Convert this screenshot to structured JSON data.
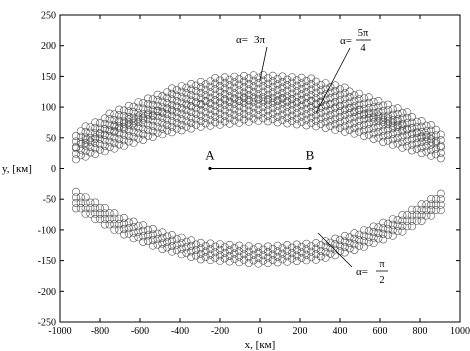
{
  "chart_data": {
    "type": "scatter",
    "title": "",
    "xlabel": "x, [км]",
    "ylabel": "y, [км]",
    "xlim": [
      -1000,
      1000
    ],
    "ylim": [
      -250,
      250
    ],
    "xticks": [
      "-1000",
      "-800",
      "-600",
      "-400",
      "-200",
      "0",
      "200",
      "400",
      "600",
      "800",
      "1000"
    ],
    "yticks": [
      "250",
      "200",
      "150",
      "100",
      "50",
      "0",
      "-50",
      "-100",
      "-150",
      "-200",
      "-250"
    ],
    "marker": "open-circle",
    "marker_color": "#555555",
    "grid": false,
    "segment": {
      "from": {
        "label": "A",
        "x": -250,
        "y": 0
      },
      "to": {
        "label": "B",
        "x": 250,
        "y": 0
      }
    },
    "series": [
      {
        "label_prefix": "α=",
        "label_value": "3π",
        "upper_envelope": {
          "x": [
            -920,
            -700,
            -500,
            -300,
            0,
            300,
            500,
            700,
            920
          ],
          "y": [
            60,
            100,
            125,
            145,
            157,
            145,
            125,
            100,
            60
          ]
        },
        "lower_envelope": {
          "x": [
            -920,
            -700,
            -500,
            -300,
            0,
            300,
            500,
            700,
            920
          ],
          "y": [
            35,
            65,
            90,
            105,
            112,
            105,
            90,
            65,
            35
          ]
        }
      },
      {
        "label_prefix": "α=",
        "label_numerator": "5π",
        "label_denominator": "4",
        "upper_envelope": {
          "x": [
            -920,
            -700,
            -500,
            -300,
            0,
            300,
            500,
            700,
            920
          ],
          "y": [
            40,
            78,
            98,
            110,
            118,
            110,
            98,
            78,
            40
          ]
        },
        "lower_envelope": {
          "x": [
            -920,
            -700,
            -500,
            -300,
            0,
            300,
            500,
            700,
            920
          ],
          "y": [
            15,
            35,
            55,
            68,
            78,
            68,
            55,
            35,
            15
          ]
        }
      },
      {
        "label_prefix": "α=",
        "label_numerator": "π",
        "label_denominator": "2",
        "upper_envelope": {
          "x": [
            -920,
            -700,
            -500,
            -300,
            0,
            300,
            500,
            700,
            920
          ],
          "y": [
            -35,
            -75,
            -100,
            -118,
            -125,
            -118,
            -100,
            -75,
            -35
          ]
        },
        "lower_envelope": {
          "x": [
            -920,
            -700,
            -500,
            -300,
            0,
            300,
            500,
            700,
            920
          ],
          "y": [
            -65,
            -105,
            -130,
            -148,
            -155,
            -148,
            -130,
            -105,
            -65
          ]
        }
      }
    ]
  }
}
